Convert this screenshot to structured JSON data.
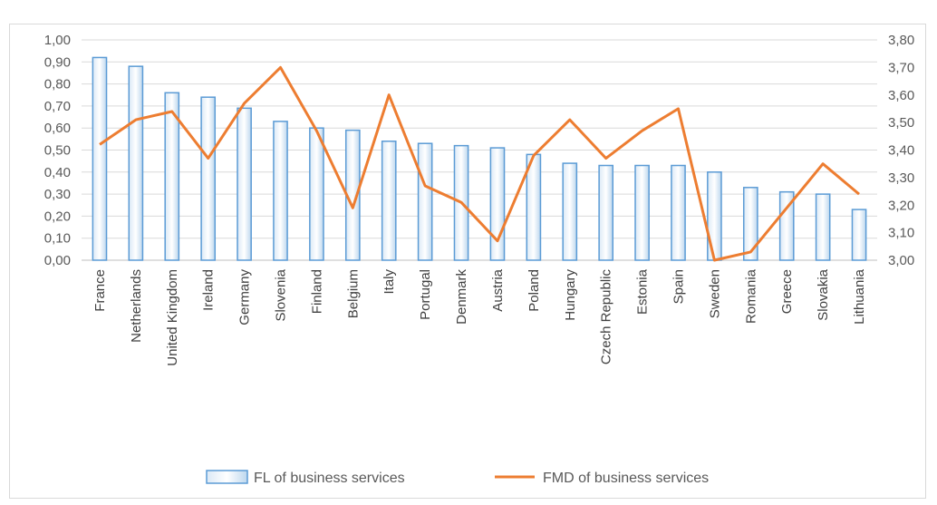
{
  "chart_data": {
    "type": "bar",
    "title": "",
    "categories": [
      "France",
      "Netherlands",
      "United Kingdom",
      "Ireland",
      "Germany",
      "Slovenia",
      "Finland",
      "Belgium",
      "Italy",
      "Portugal",
      "Denmark",
      "Austria",
      "Poland",
      "Hungary",
      "Czech Republic",
      "Estonia",
      "Spain",
      "Sweden",
      "Romania",
      "Greece",
      "Slovakia",
      "Lithuania"
    ],
    "series": [
      {
        "name": "FL of business services",
        "type": "bar",
        "axis": "left",
        "values": [
          0.92,
          0.88,
          0.76,
          0.74,
          0.69,
          0.63,
          0.6,
          0.59,
          0.54,
          0.53,
          0.52,
          0.51,
          0.48,
          0.44,
          0.43,
          0.43,
          0.43,
          0.4,
          0.33,
          0.31,
          0.3,
          0.23
        ]
      },
      {
        "name": "FMD of business services",
        "type": "line",
        "axis": "right",
        "values": [
          3.42,
          3.51,
          3.54,
          3.37,
          3.57,
          3.7,
          3.47,
          3.19,
          3.6,
          3.27,
          3.21,
          3.07,
          3.38,
          3.51,
          3.37,
          3.47,
          3.55,
          3.0,
          3.03,
          3.19,
          3.35,
          3.24
        ]
      }
    ],
    "y_left": {
      "min": 0,
      "max": 1.0,
      "ticks": [
        "0,00",
        "0,10",
        "0,20",
        "0,30",
        "0,40",
        "0,50",
        "0,60",
        "0,70",
        "0,80",
        "0,90",
        "1,00"
      ]
    },
    "y_right": {
      "min": 3.0,
      "max": 3.8,
      "ticks": [
        "3,00",
        "3,10",
        "3,20",
        "3,30",
        "3,40",
        "3,50",
        "3,60",
        "3,70",
        "3,80"
      ]
    },
    "grid": true,
    "legend": "bottom-center",
    "colors": {
      "bar_fill": "#bdd7ee",
      "bar_stroke": "#5b9bd5",
      "line": "#ed7d31"
    }
  }
}
